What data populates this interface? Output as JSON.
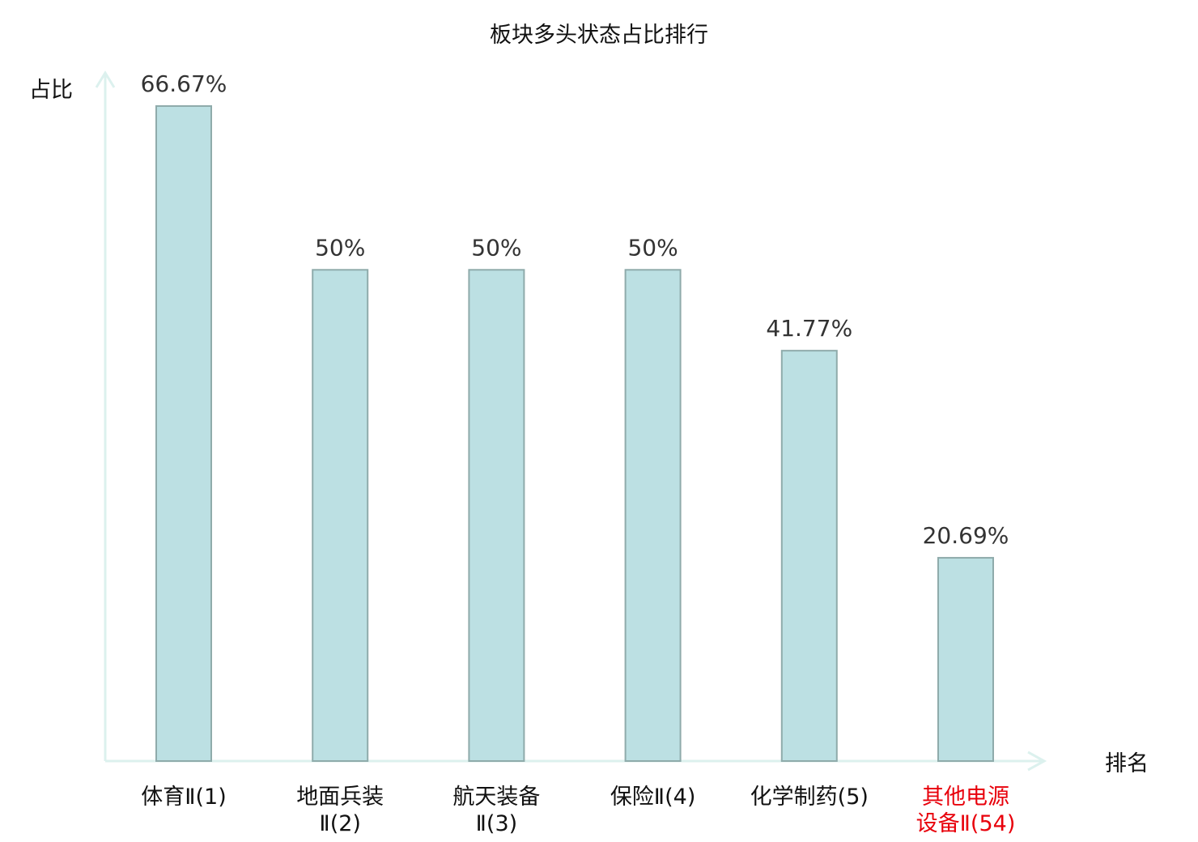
{
  "chart_data": {
    "type": "bar",
    "title": "板块多头状态占比排行",
    "ylabel": "占比",
    "xlabel": "排名",
    "categories": [
      [
        "体育Ⅱ(1)"
      ],
      [
        "地面兵装",
        "Ⅱ(2)"
      ],
      [
        "航天装备",
        "Ⅱ(3)"
      ],
      [
        "保险Ⅱ(4)"
      ],
      [
        "化学制药(5)"
      ],
      [
        "其他电源",
        "设备Ⅱ(54)"
      ]
    ],
    "values": [
      66.67,
      50,
      50,
      50,
      41.77,
      20.69
    ],
    "value_labels": [
      "66.67%",
      "50%",
      "50%",
      "50%",
      "41.77%",
      "20.69%"
    ],
    "ylim": [
      0,
      70
    ],
    "grid": false,
    "highlighted_category_index": 5,
    "colors": {
      "bar_fill": "#bce0e3",
      "bar_stroke": "#8fabab",
      "axis": "#dcf1ee",
      "tick_label": "#111111",
      "highlight_label": "#e8000b",
      "value_label": "#333333"
    }
  }
}
